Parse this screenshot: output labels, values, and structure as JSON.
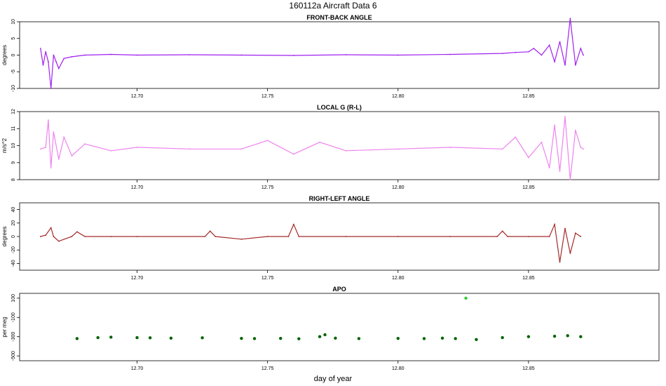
{
  "figure": {
    "title": "160112a   Aircraft Data 6",
    "xlabel": "day of year"
  },
  "chart_data": [
    {
      "type": "line",
      "title": "FRONT-BACK ANGLE",
      "ylabel": "degrees",
      "color": "#a020f0",
      "xlim": [
        12.655,
        12.9
      ],
      "ylim": [
        -10,
        10
      ],
      "xticks": [
        12.7,
        12.75,
        12.8,
        12.85
      ],
      "xtick_labels": [
        "12.70",
        "12.75",
        "12.80",
        "12.85"
      ],
      "yticks": [
        -10,
        -5,
        0,
        5,
        10
      ],
      "ytick_labels": [
        "-10",
        "-5",
        "0",
        "5",
        "10"
      ],
      "x": [
        12.663,
        12.664,
        12.665,
        12.666,
        12.667,
        12.668,
        12.669,
        12.67,
        12.672,
        12.675,
        12.68,
        12.69,
        12.7,
        12.72,
        12.74,
        12.76,
        12.78,
        12.8,
        12.82,
        12.84,
        12.845,
        12.85,
        12.852,
        12.855,
        12.858,
        12.86,
        12.862,
        12.864,
        12.866,
        12.868,
        12.87,
        12.871
      ],
      "values": [
        2,
        -3,
        1,
        -2,
        -10,
        0,
        -2,
        -4,
        -1,
        -0.5,
        0,
        0.2,
        0,
        0.1,
        0,
        -0.1,
        0.1,
        0,
        0.2,
        0.5,
        0.8,
        1,
        2,
        0,
        3,
        -2,
        4,
        -3,
        11,
        -3,
        2,
        0
      ]
    },
    {
      "type": "line",
      "title": "LOCAL G (R-L)",
      "ylabel": "m/s^2",
      "color": "#ee82ee",
      "xlim": [
        12.655,
        12.9
      ],
      "ylim": [
        8,
        12
      ],
      "xticks": [
        12.7,
        12.75,
        12.8,
        12.85
      ],
      "xtick_labels": [
        "12.70",
        "12.75",
        "12.80",
        "12.85"
      ],
      "yticks": [
        8,
        9,
        10,
        11,
        12
      ],
      "ytick_labels": [
        "8",
        "9",
        "10",
        "11",
        "12"
      ],
      "x": [
        12.663,
        12.665,
        12.666,
        12.667,
        12.668,
        12.67,
        12.672,
        12.675,
        12.68,
        12.69,
        12.7,
        12.72,
        12.74,
        12.75,
        12.76,
        12.77,
        12.78,
        12.8,
        12.82,
        12.84,
        12.845,
        12.85,
        12.855,
        12.858,
        12.86,
        12.862,
        12.864,
        12.866,
        12.868,
        12.87,
        12.871
      ],
      "values": [
        9.8,
        9.9,
        11.5,
        8.7,
        10.8,
        9.2,
        10.5,
        9.4,
        10.1,
        9.7,
        9.9,
        9.8,
        9.8,
        10.3,
        9.5,
        10.2,
        9.7,
        9.8,
        9.9,
        9.8,
        10.5,
        9.3,
        10.2,
        8.7,
        11.2,
        8.5,
        11.7,
        8.0,
        10.9,
        9.9,
        9.8
      ]
    },
    {
      "type": "line",
      "title": "RIGHT-LEFT ANGLE",
      "ylabel": "degrees",
      "color": "#a52a2a",
      "xlim": [
        12.655,
        12.9
      ],
      "ylim": [
        -50,
        50
      ],
      "xticks": [
        12.7,
        12.75,
        12.8,
        12.85
      ],
      "xtick_labels": [
        "12.70",
        "12.75",
        "12.80",
        "12.85"
      ],
      "yticks": [
        -40,
        -20,
        0,
        20,
        40
      ],
      "ytick_labels": [
        "-40",
        "-20",
        "0",
        "20",
        "40"
      ],
      "x": [
        12.663,
        12.665,
        12.667,
        12.668,
        12.67,
        12.675,
        12.677,
        12.68,
        12.69,
        12.7,
        12.726,
        12.728,
        12.73,
        12.74,
        12.75,
        12.758,
        12.76,
        12.762,
        12.78,
        12.8,
        12.82,
        12.838,
        12.84,
        12.842,
        12.85,
        12.858,
        12.86,
        12.862,
        12.864,
        12.866,
        12.868,
        12.87
      ],
      "values": [
        0,
        2,
        13,
        0,
        -7,
        0,
        7,
        0,
        0,
        0,
        0,
        8,
        0,
        -4,
        0,
        0,
        18,
        0,
        0,
        0,
        0,
        0,
        8,
        0,
        0,
        0,
        18,
        -38,
        12,
        -25,
        5,
        0
      ]
    },
    {
      "type": "scatter",
      "title": "APO",
      "ylabel": "per meg",
      "color": "#006400",
      "color_secondary": "#32cd32",
      "xlim": [
        12.655,
        12.9
      ],
      "ylim": [
        -550,
        150
      ],
      "xticks": [
        12.7,
        12.75,
        12.8,
        12.85
      ],
      "xtick_labels": [
        "12.70",
        "12.75",
        "12.80",
        "12.85"
      ],
      "yticks": [
        -500,
        -300,
        -100,
        100
      ],
      "ytick_labels": [
        "-500",
        "-300",
        "-100",
        "100"
      ],
      "x": [
        12.677,
        12.685,
        12.69,
        12.7,
        12.705,
        12.713,
        12.725,
        12.74,
        12.745,
        12.755,
        12.762,
        12.77,
        12.772,
        12.776,
        12.785,
        12.8,
        12.81,
        12.817,
        12.822,
        12.826,
        12.83,
        12.84,
        12.85,
        12.86,
        12.865,
        12.87
      ],
      "values": [
        -320,
        -310,
        -305,
        -310,
        -312,
        -315,
        -312,
        -318,
        -320,
        -318,
        -322,
        -300,
        -280,
        -315,
        -320,
        -318,
        -320,
        -315,
        -320,
        100,
        -330,
        -310,
        -300,
        -295,
        -290,
        -300
      ]
    }
  ]
}
